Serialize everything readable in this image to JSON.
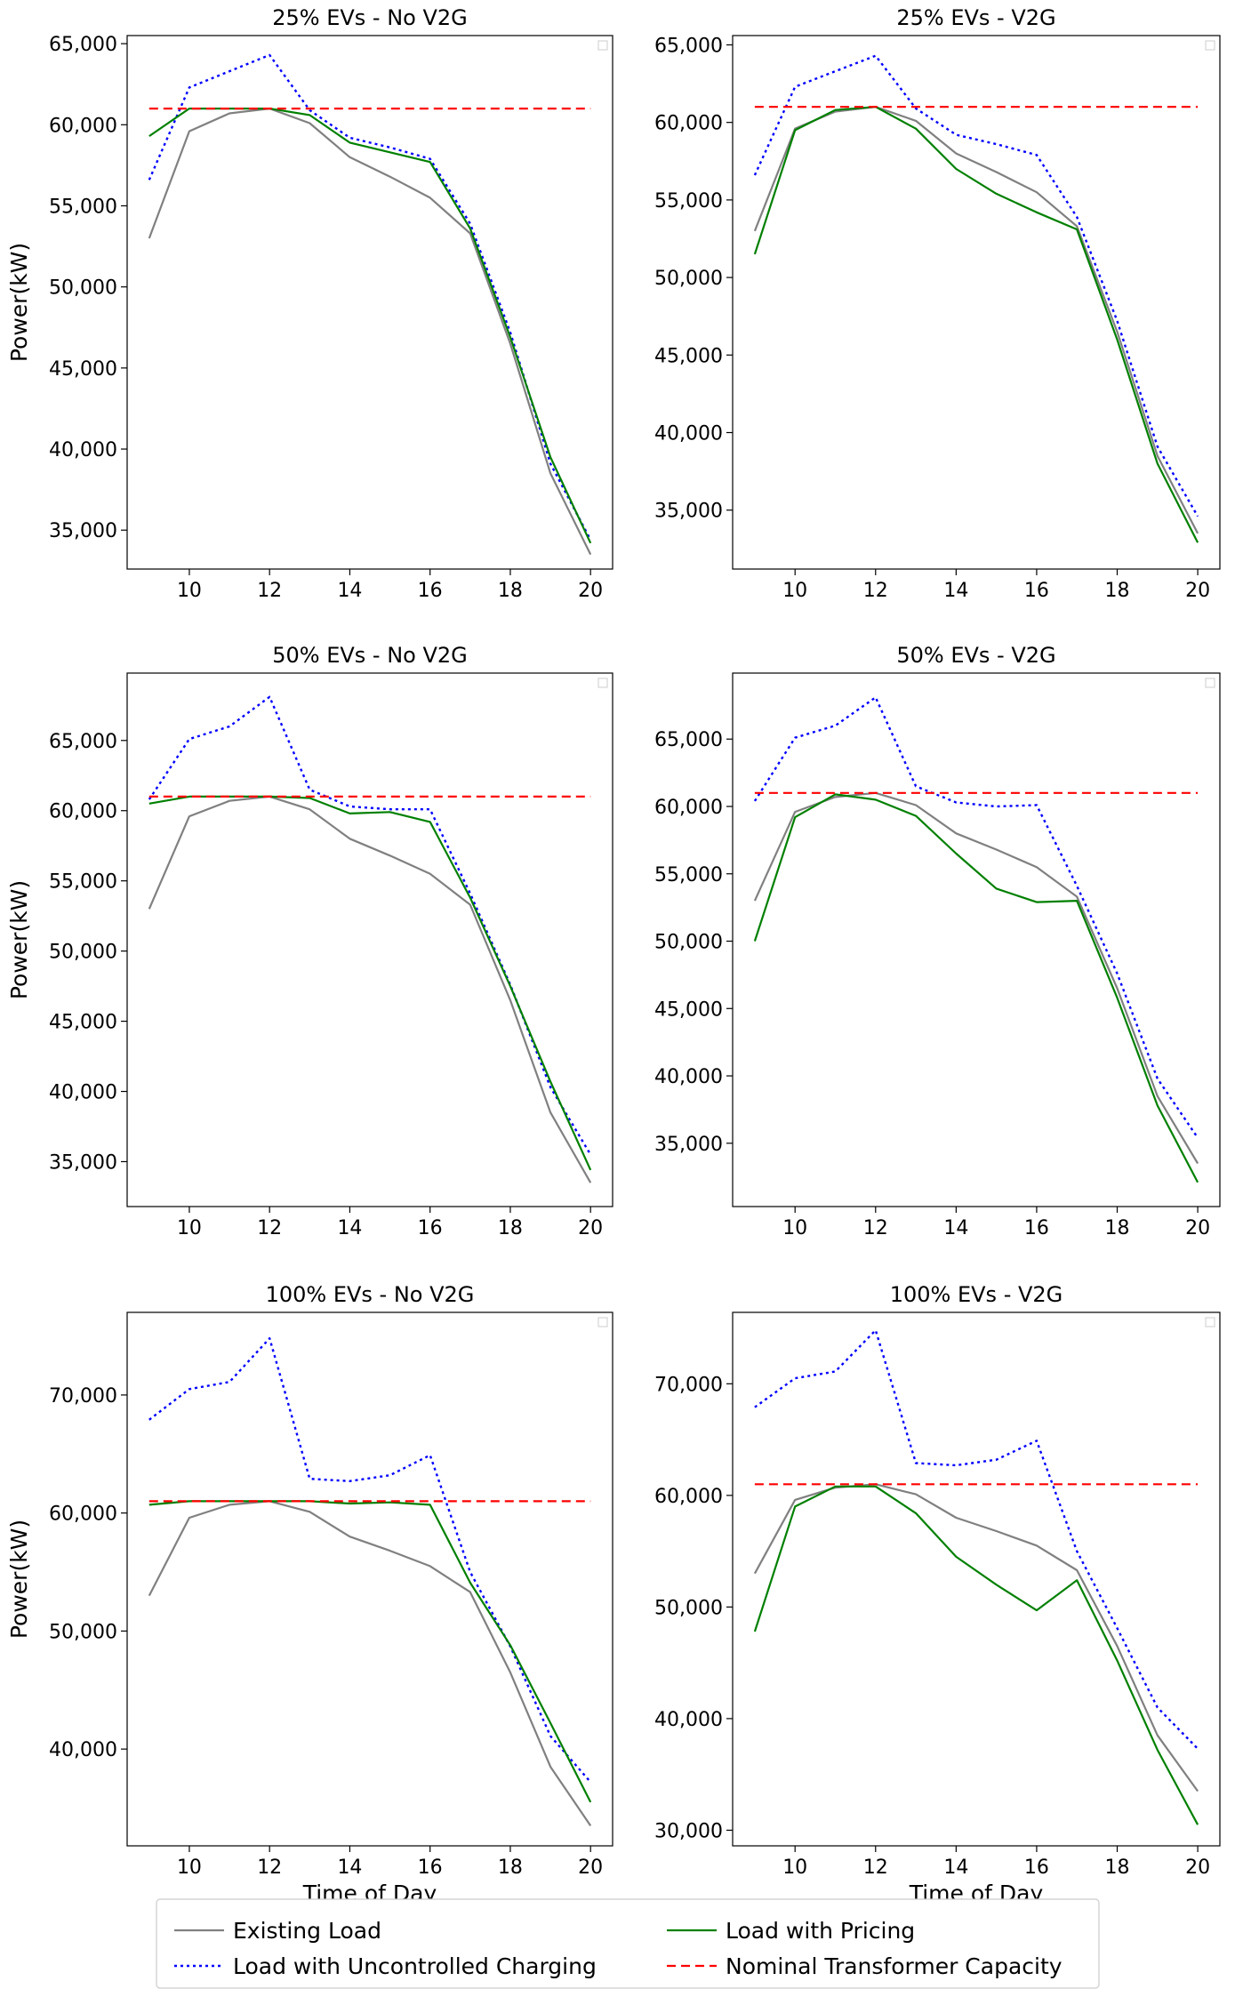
{
  "legend": {
    "items": [
      {
        "label": "Existing Load",
        "color": "#808080",
        "style": "solid"
      },
      {
        "label": "Load with Uncontrolled Charging",
        "color": "#0000ff",
        "style": "dotted"
      },
      {
        "label": "Load with Pricing",
        "color": "#008000",
        "style": "solid"
      },
      {
        "label": "Nominal Transformer Capacity",
        "color": "#ff0000",
        "style": "dashed"
      }
    ]
  },
  "chart_data": [
    {
      "type": "line",
      "title": "25% EVs - No V2G",
      "xlabel": "",
      "ylabel": "Power(kW)",
      "x": [
        9,
        10,
        11,
        12,
        13,
        14,
        15,
        16,
        17,
        18,
        19,
        20
      ],
      "xticks": [
        10,
        12,
        14,
        16,
        18,
        20
      ],
      "xticklabels": [
        "10",
        "12",
        "14",
        "16",
        "18",
        "20"
      ],
      "xlim": [
        8.45,
        20.55
      ],
      "yticks": [
        35000,
        40000,
        45000,
        50000,
        55000,
        60000,
        65000
      ],
      "yticklabels": [
        "35,000",
        "40,000",
        "45,000",
        "50,000",
        "55,000",
        "60,000",
        "65,000"
      ],
      "ylim": [
        32600,
        65500
      ],
      "series": [
        {
          "name": "Existing Load",
          "values": [
            53000,
            59600,
            60700,
            61000,
            60100,
            58000,
            56800,
            55500,
            53300,
            46500,
            38500,
            33500
          ]
        },
        {
          "name": "Load with Uncontrolled Charging",
          "values": [
            56600,
            62300,
            63300,
            64300,
            60900,
            59200,
            58600,
            57900,
            53900,
            47200,
            39100,
            34400
          ]
        },
        {
          "name": "Load with Pricing",
          "values": [
            59300,
            61000,
            61000,
            61000,
            60600,
            58900,
            58300,
            57700,
            53600,
            46900,
            39500,
            34200
          ]
        },
        {
          "name": "Nominal Transformer Capacity",
          "values": [
            61000,
            61000,
            61000,
            61000,
            61000,
            61000,
            61000,
            61000,
            61000,
            61000,
            61000,
            61000
          ]
        }
      ]
    },
    {
      "type": "line",
      "title": "25% EVs - V2G",
      "xlabel": "",
      "ylabel": "",
      "x": [
        9,
        10,
        11,
        12,
        13,
        14,
        15,
        16,
        17,
        18,
        19,
        20
      ],
      "xticks": [
        10,
        12,
        14,
        16,
        18,
        20
      ],
      "xticklabels": [
        "10",
        "12",
        "14",
        "16",
        "18",
        "20"
      ],
      "xlim": [
        8.45,
        20.55
      ],
      "yticks": [
        35000,
        40000,
        45000,
        50000,
        55000,
        60000,
        65000
      ],
      "yticklabels": [
        "35,000",
        "40,000",
        "45,000",
        "50,000",
        "55,000",
        "60,000",
        "65,000"
      ],
      "ylim": [
        31200,
        65600
      ],
      "series": [
        {
          "name": "Existing Load",
          "values": [
            53000,
            59600,
            60700,
            61000,
            60100,
            58000,
            56800,
            55500,
            53300,
            46500,
            38500,
            33500
          ]
        },
        {
          "name": "Load with Uncontrolled Charging",
          "values": [
            56600,
            62300,
            63300,
            64300,
            60900,
            59200,
            58600,
            57900,
            53900,
            47200,
            39100,
            34600
          ]
        },
        {
          "name": "Load with Pricing",
          "values": [
            51500,
            59500,
            60800,
            61000,
            59600,
            57000,
            55400,
            54200,
            53100,
            46000,
            38000,
            32900
          ]
        },
        {
          "name": "Nominal Transformer Capacity",
          "values": [
            61000,
            61000,
            61000,
            61000,
            61000,
            61000,
            61000,
            61000,
            61000,
            61000,
            61000,
            61000
          ]
        }
      ]
    },
    {
      "type": "line",
      "title": "50% EVs - No V2G",
      "xlabel": "",
      "ylabel": "Power(kW)",
      "x": [
        9,
        10,
        11,
        12,
        13,
        14,
        15,
        16,
        17,
        18,
        19,
        20
      ],
      "xticks": [
        10,
        12,
        14,
        16,
        18,
        20
      ],
      "xticklabels": [
        "10",
        "12",
        "14",
        "16",
        "18",
        "20"
      ],
      "xlim": [
        8.45,
        20.55
      ],
      "yticks": [
        35000,
        40000,
        45000,
        50000,
        55000,
        60000,
        65000
      ],
      "yticklabels": [
        "35,000",
        "40,000",
        "45,000",
        "50,000",
        "55,000",
        "60,000",
        "65,000"
      ],
      "ylim": [
        31800,
        69800
      ],
      "series": [
        {
          "name": "Existing Load",
          "values": [
            53000,
            59600,
            60700,
            61000,
            60100,
            58000,
            56800,
            55500,
            53300,
            46500,
            38500,
            33500
          ]
        },
        {
          "name": "Load with Uncontrolled Charging",
          "values": [
            60800,
            65100,
            66000,
            68100,
            61500,
            60300,
            60100,
            60100,
            54100,
            47600,
            40300,
            35500
          ]
        },
        {
          "name": "Load with Pricing",
          "values": [
            60500,
            61000,
            61000,
            61000,
            60900,
            59800,
            59900,
            59200,
            53800,
            47500,
            40700,
            34400
          ]
        },
        {
          "name": "Nominal Transformer Capacity",
          "values": [
            61000,
            61000,
            61000,
            61000,
            61000,
            61000,
            61000,
            61000,
            61000,
            61000,
            61000,
            61000
          ]
        }
      ]
    },
    {
      "type": "line",
      "title": "50% EVs - V2G",
      "xlabel": "",
      "ylabel": "",
      "x": [
        9,
        10,
        11,
        12,
        13,
        14,
        15,
        16,
        17,
        18,
        19,
        20
      ],
      "xticks": [
        10,
        12,
        14,
        16,
        18,
        20
      ],
      "xticklabels": [
        "10",
        "12",
        "14",
        "16",
        "18",
        "20"
      ],
      "xlim": [
        8.45,
        20.55
      ],
      "yticks": [
        35000,
        40000,
        45000,
        50000,
        55000,
        60000,
        65000
      ],
      "yticklabels": [
        "35,000",
        "40,000",
        "45,000",
        "50,000",
        "55,000",
        "60,000",
        "65,000"
      ],
      "ylim": [
        30300,
        69900
      ],
      "series": [
        {
          "name": "Existing Load",
          "values": [
            53000,
            59600,
            60700,
            61000,
            60100,
            58000,
            56800,
            55500,
            53300,
            46500,
            38500,
            33500
          ]
        },
        {
          "name": "Load with Uncontrolled Charging",
          "values": [
            60400,
            65100,
            66000,
            68100,
            61500,
            60300,
            60000,
            60100,
            54100,
            47600,
            39800,
            35400
          ]
        },
        {
          "name": "Load with Pricing",
          "values": [
            50000,
            59200,
            60900,
            60500,
            59300,
            56500,
            53900,
            52900,
            53000,
            45800,
            37800,
            32100
          ]
        },
        {
          "name": "Nominal Transformer Capacity",
          "values": [
            61000,
            61000,
            61000,
            61000,
            61000,
            61000,
            61000,
            61000,
            61000,
            61000,
            61000,
            61000
          ]
        }
      ]
    },
    {
      "type": "line",
      "title": "100% EVs - No V2G",
      "xlabel": "Time of Day",
      "ylabel": "Power(kW)",
      "x": [
        9,
        10,
        11,
        12,
        13,
        14,
        15,
        16,
        17,
        18,
        19,
        20
      ],
      "xticks": [
        10,
        12,
        14,
        16,
        18,
        20
      ],
      "xticklabels": [
        "10",
        "12",
        "14",
        "16",
        "18",
        "20"
      ],
      "xlim": [
        8.45,
        20.55
      ],
      "yticks": [
        40000,
        50000,
        60000,
        70000
      ],
      "yticklabels": [
        "40,000",
        "50,000",
        "60,000",
        "70,000"
      ],
      "ylim": [
        31800,
        77000
      ],
      "series": [
        {
          "name": "Existing Load",
          "values": [
            53000,
            59600,
            60700,
            61000,
            60100,
            58000,
            56800,
            55500,
            53300,
            46500,
            38500,
            33500
          ]
        },
        {
          "name": "Load with Uncontrolled Charging",
          "values": [
            67900,
            70500,
            71100,
            74800,
            62900,
            62700,
            63200,
            64900,
            55000,
            48700,
            41100,
            37200
          ]
        },
        {
          "name": "Load with Pricing",
          "values": [
            60700,
            61000,
            61000,
            61000,
            61000,
            60800,
            60900,
            60700,
            54100,
            48800,
            42200,
            35500
          ]
        },
        {
          "name": "Nominal Transformer Capacity",
          "values": [
            61000,
            61000,
            61000,
            61000,
            61000,
            61000,
            61000,
            61000,
            61000,
            61000,
            61000,
            61000
          ]
        }
      ]
    },
    {
      "type": "line",
      "title": "100% EVs - V2G",
      "xlabel": "Time of Day",
      "ylabel": "",
      "x": [
        9,
        10,
        11,
        12,
        13,
        14,
        15,
        16,
        17,
        18,
        19,
        20
      ],
      "xticks": [
        10,
        12,
        14,
        16,
        18,
        20
      ],
      "xticklabels": [
        "10",
        "12",
        "14",
        "16",
        "18",
        "20"
      ],
      "xlim": [
        8.45,
        20.55
      ],
      "yticks": [
        30000,
        40000,
        50000,
        60000,
        70000
      ],
      "yticklabels": [
        "30,000",
        "40,000",
        "50,000",
        "60,000",
        "70,000"
      ],
      "ylim": [
        28600,
        76400
      ],
      "series": [
        {
          "name": "Existing Load",
          "values": [
            53000,
            59600,
            60700,
            61000,
            60100,
            58000,
            56800,
            55500,
            53300,
            46500,
            38500,
            33500
          ]
        },
        {
          "name": "Load with Uncontrolled Charging",
          "values": [
            67900,
            70500,
            71100,
            74800,
            62900,
            62700,
            63200,
            64900,
            55000,
            48100,
            41000,
            37300
          ]
        },
        {
          "name": "Load with Pricing",
          "values": [
            47800,
            59000,
            60800,
            60800,
            58400,
            54500,
            52000,
            49700,
            52400,
            45200,
            37200,
            30500
          ]
        },
        {
          "name": "Nominal Transformer Capacity",
          "values": [
            61000,
            61000,
            61000,
            61000,
            61000,
            61000,
            61000,
            61000,
            61000,
            61000,
            61000,
            61000
          ]
        }
      ]
    }
  ]
}
